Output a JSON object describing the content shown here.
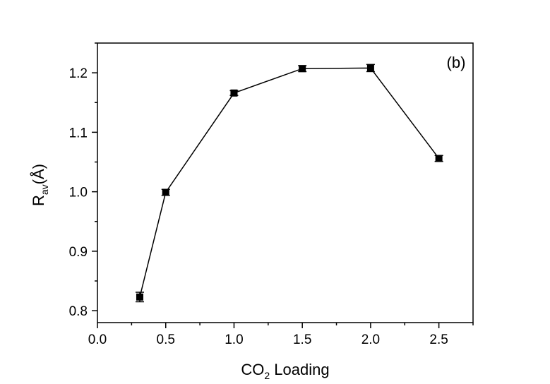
{
  "chart_data": {
    "type": "line",
    "panel_label": "(b)",
    "xlabel": {
      "main": "CO",
      "sub": "2",
      "rest": " Loading"
    },
    "ylabel": {
      "main": "R",
      "sub": "av",
      "rest": "(Å)"
    },
    "xlim": [
      0.0,
      2.75
    ],
    "ylim": [
      0.78,
      1.25
    ],
    "xticks": [
      0.0,
      0.5,
      1.0,
      1.5,
      2.0,
      2.5
    ],
    "xtick_labels": [
      "0.0",
      "0.5",
      "1.0",
      "1.5",
      "2.0",
      "2.5"
    ],
    "yticks": [
      0.8,
      0.9,
      1.0,
      1.1,
      1.2
    ],
    "ytick_labels": [
      "0.8",
      "0.9",
      "1.0",
      "1.1",
      "1.2"
    ],
    "grid": false,
    "series": [
      {
        "name": "R_av",
        "marker": "square",
        "color": "#000000",
        "x": [
          0.31,
          0.5,
          1.0,
          1.5,
          2.0,
          2.5
        ],
        "y": [
          0.823,
          0.999,
          1.166,
          1.207,
          1.208,
          1.056
        ],
        "yerr": [
          0.008,
          0.005,
          0.004,
          0.005,
          0.006,
          0.005
        ]
      }
    ]
  }
}
